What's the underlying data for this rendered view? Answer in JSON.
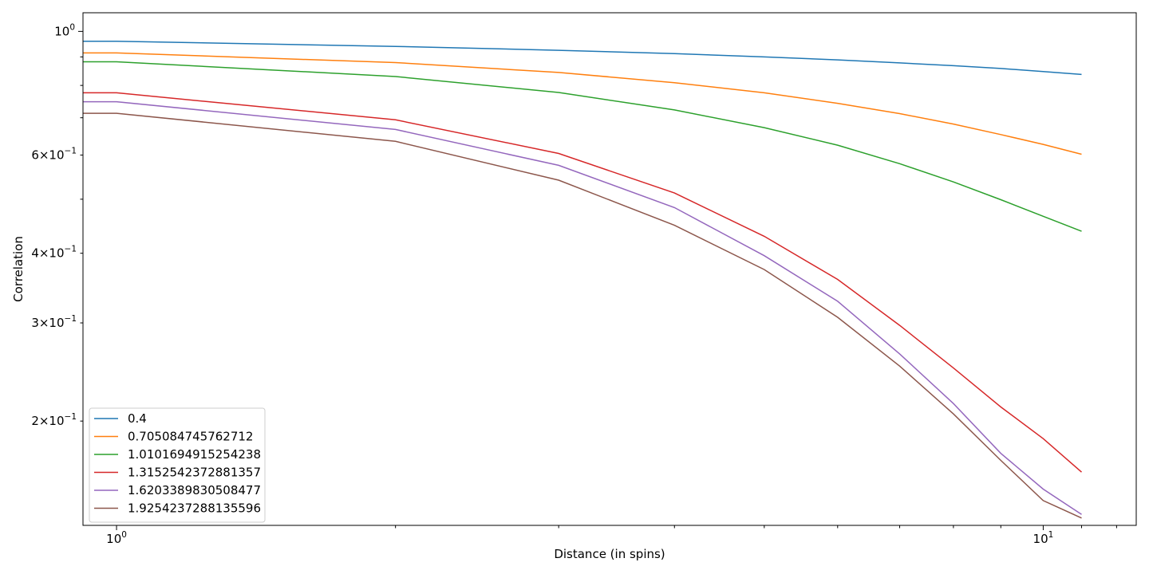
{
  "chart_data": {
    "type": "line",
    "title": "",
    "xlabel": "Distance (in spins)",
    "ylabel": "Correlation",
    "xscale": "log",
    "yscale": "log",
    "xlim": [
      0.92,
      12.6
    ],
    "ylim": [
      0.13,
      1.08
    ],
    "grid": false,
    "legend_position": "lower-left",
    "x_major_ticks": [
      {
        "value": 1,
        "base": "10",
        "exp": "0"
      },
      {
        "value": 10,
        "base": "10",
        "exp": "1"
      }
    ],
    "y_major_ticks": [
      {
        "value": 1,
        "base": "10",
        "exp": "0"
      }
    ],
    "y_minor_labeled_ticks": [
      {
        "value": 0.2,
        "mant": "2",
        "base": "10",
        "exp": "−1"
      },
      {
        "value": 0.3,
        "mant": "3",
        "base": "10",
        "exp": "−1"
      },
      {
        "value": 0.4,
        "mant": "4",
        "base": "10",
        "exp": "−1"
      },
      {
        "value": 0.6,
        "mant": "6",
        "base": "10",
        "exp": "−1"
      }
    ],
    "y_minor_unlabeled_ticks": [
      0.5,
      0.7,
      0.8,
      0.9
    ],
    "x": [
      0,
      1,
      2,
      3,
      4,
      5,
      6,
      7,
      8,
      9,
      10,
      11
    ],
    "series": [
      {
        "name": "0.4",
        "color": "#1f77b4",
        "values": [
          0.96,
          0.96,
          0.94,
          0.925,
          0.912,
          0.9,
          0.889,
          0.878,
          0.868,
          0.858,
          0.847,
          0.837
        ]
      },
      {
        "name": "0.705084745762712",
        "color": "#ff7f0e",
        "values": [
          0.915,
          0.915,
          0.879,
          0.844,
          0.809,
          0.776,
          0.743,
          0.712,
          0.682,
          0.653,
          0.627,
          0.602
        ]
      },
      {
        "name": "1.0101694915254238",
        "color": "#2ca02c",
        "values": [
          0.882,
          0.882,
          0.83,
          0.777,
          0.723,
          0.672,
          0.625,
          0.579,
          0.537,
          0.499,
          0.466,
          0.438
        ]
      },
      {
        "name": "1.3152542372881357",
        "color": "#d62728",
        "values": [
          0.776,
          0.776,
          0.694,
          0.604,
          0.513,
          0.429,
          0.359,
          0.297,
          0.249,
          0.212,
          0.186,
          0.162
        ]
      },
      {
        "name": "1.6203389830508477",
        "color": "#9467bd",
        "values": [
          0.748,
          0.748,
          0.667,
          0.575,
          0.483,
          0.396,
          0.328,
          0.264,
          0.215,
          0.175,
          0.151,
          0.136
        ]
      },
      {
        "name": "1.9254237288135596",
        "color": "#8c564b",
        "values": [
          0.713,
          0.713,
          0.635,
          0.541,
          0.449,
          0.374,
          0.307,
          0.251,
          0.206,
          0.17,
          0.144,
          0.134
        ]
      }
    ]
  }
}
